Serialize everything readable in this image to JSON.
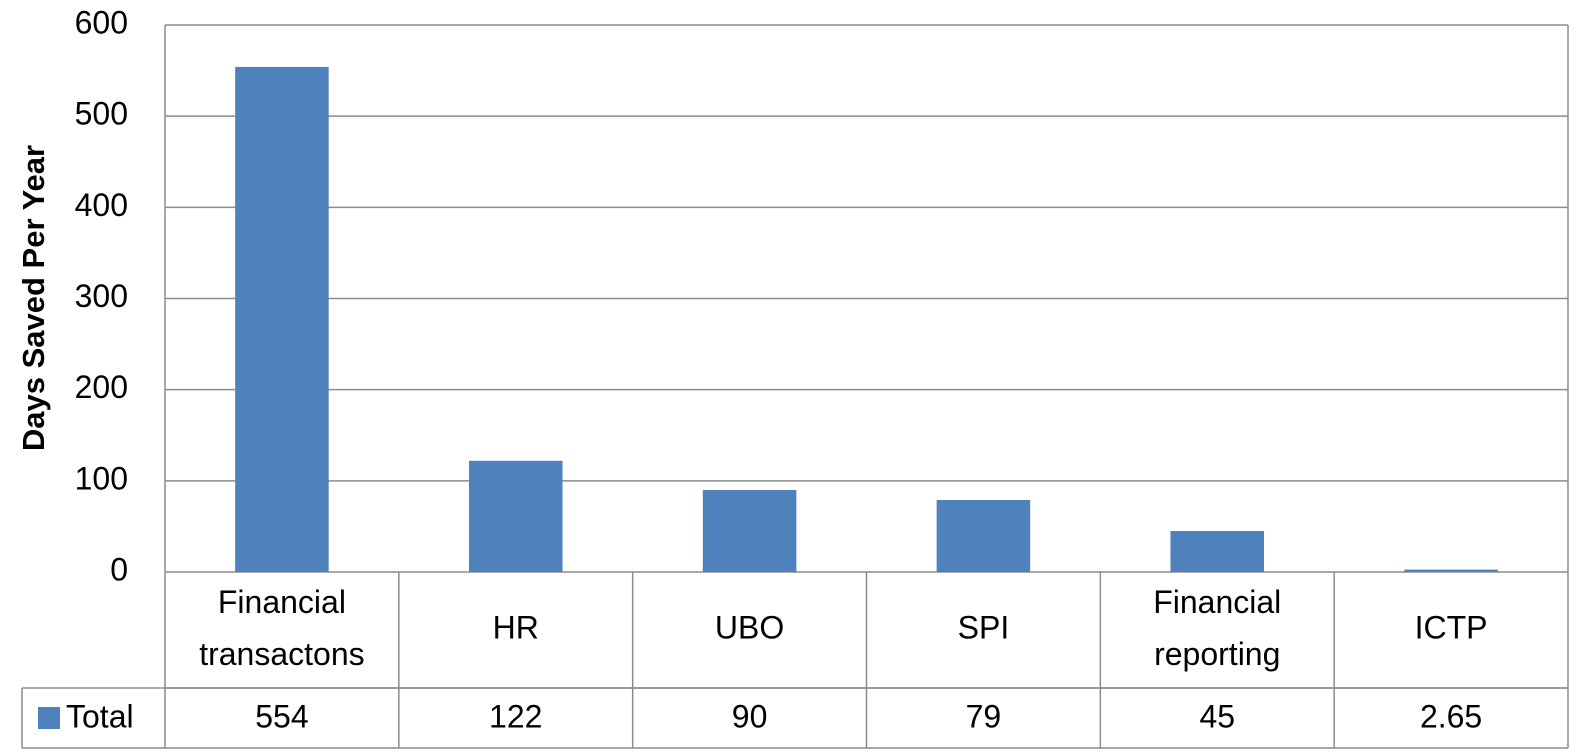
{
  "chart_data": {
    "type": "bar",
    "y_label": "Days Saved Per Year",
    "categories": [
      "Financial transactons",
      "HR",
      "UBO",
      "SPI",
      "Financial reporting",
      "ICTP"
    ],
    "series": [
      {
        "name": "Total",
        "color": "#4f81bd",
        "values": [
          554,
          122,
          90,
          79,
          45,
          2.65
        ]
      }
    ],
    "ylim": [
      0,
      600
    ],
    "yticks": [
      0,
      100,
      200,
      300,
      400,
      500,
      600
    ],
    "grid": true,
    "legend": "table"
  }
}
